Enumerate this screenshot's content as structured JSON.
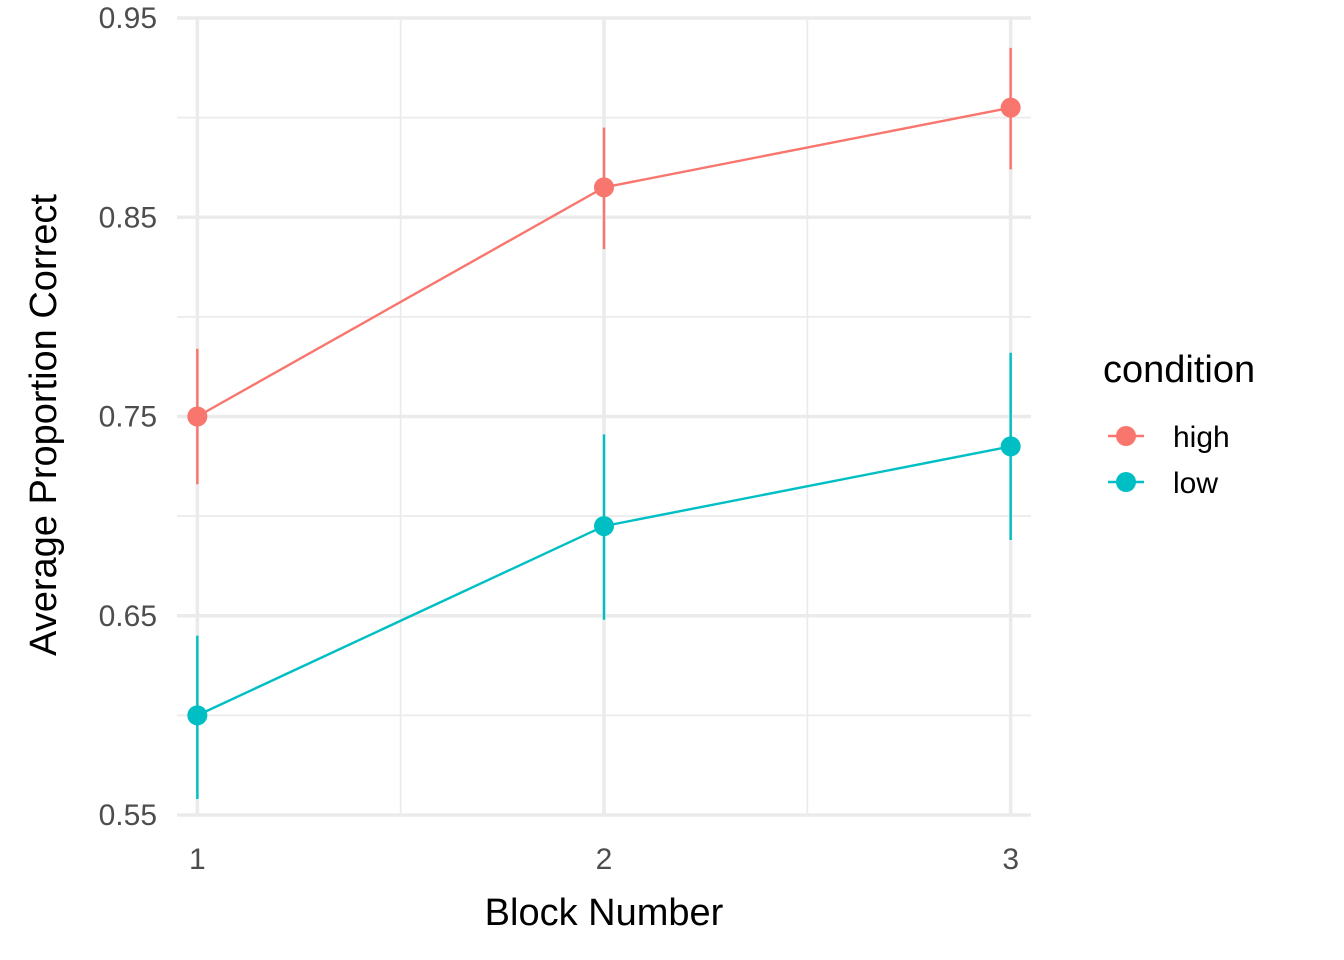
{
  "chart_data": {
    "type": "line",
    "xlabel": "Block Number",
    "ylabel": "Average Proportion Correct",
    "x": [
      1,
      2,
      3
    ],
    "x_ticks": [
      "1",
      "2",
      "3"
    ],
    "xlim": [
      0.95,
      3.05
    ],
    "ylim": [
      0.55,
      0.95
    ],
    "y_ticks": [
      "0.55",
      "0.65",
      "0.75",
      "0.85",
      "0.95"
    ],
    "grid": true,
    "legend": {
      "title": "condition",
      "position": "right"
    },
    "series": [
      {
        "name": "high",
        "color": "#F8766D",
        "values": [
          0.75,
          0.865,
          0.905
        ],
        "error_lower": [
          0.716,
          0.834,
          0.874
        ],
        "error_upper": [
          0.784,
          0.895,
          0.935
        ]
      },
      {
        "name": "low",
        "color": "#00BFC4",
        "values": [
          0.6,
          0.695,
          0.735
        ],
        "error_lower": [
          0.558,
          0.648,
          0.688
        ],
        "error_upper": [
          0.64,
          0.741,
          0.782
        ]
      }
    ]
  }
}
